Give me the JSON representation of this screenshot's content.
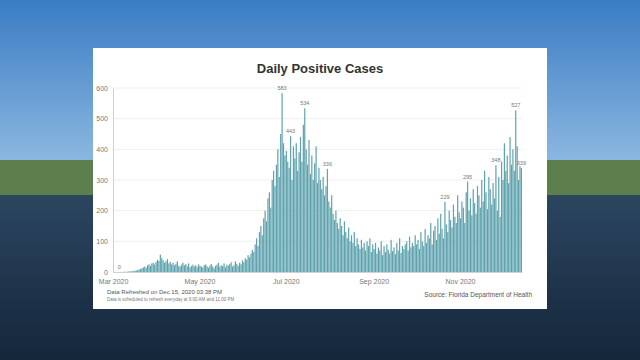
{
  "chart_data": {
    "type": "bar",
    "title": "Daily Positive Cases",
    "notes": [
      "Data Refreshed on Dec 15, 2020 03:38 PM",
      "Data is scheduled to refresh everyday at 9:00 AM and 11:00 PM"
    ],
    "source": "Source: Florida Department of Health",
    "color": "#5fa3ae",
    "grid": true,
    "data_labels": true,
    "ylim": [
      0,
      600
    ],
    "yticks": [
      0,
      100,
      200,
      300,
      400,
      500,
      600
    ],
    "categories": [
      "Mar 2020",
      null,
      null,
      null,
      null,
      null,
      null,
      null,
      null,
      null,
      null,
      null,
      null,
      null,
      null,
      null,
      null,
      null,
      null,
      null,
      null,
      null,
      null,
      null,
      null,
      null,
      null,
      null,
      null,
      null,
      null,
      null,
      null,
      null,
      null,
      null,
      null,
      null,
      null,
      null,
      null,
      null,
      null,
      null,
      null,
      null,
      null,
      null,
      null,
      null,
      null,
      null,
      null,
      null,
      null,
      null,
      null,
      null,
      null,
      null,
      null,
      "May 2020",
      null,
      null,
      null,
      null,
      null,
      null,
      null,
      null,
      null,
      null,
      null,
      null,
      null,
      null,
      null,
      null,
      null,
      null,
      null,
      null,
      null,
      null,
      null,
      null,
      null,
      null,
      null,
      null,
      null,
      null,
      null,
      null,
      null,
      null,
      null,
      null,
      null,
      null,
      null,
      null,
      null,
      null,
      null,
      null,
      null,
      null,
      null,
      null,
      null,
      null,
      null,
      null,
      null,
      null,
      null,
      null,
      null,
      null,
      null,
      null,
      "Jul 2020",
      null,
      null,
      null,
      null,
      null,
      null,
      null,
      null,
      null,
      null,
      null,
      null,
      null,
      null,
      null,
      null,
      null,
      null,
      null,
      null,
      null,
      null,
      null,
      null,
      null,
      null,
      null,
      null,
      null,
      null,
      null,
      null,
      null,
      null,
      null,
      null,
      null,
      null,
      null,
      null,
      null,
      null,
      null,
      null,
      null,
      null,
      null,
      null,
      null,
      null,
      null,
      null,
      null,
      null,
      null,
      null,
      null,
      null,
      null,
      null,
      null,
      "Sep 2020",
      null,
      null,
      null,
      null,
      null,
      null,
      null,
      null,
      null,
      null,
      null,
      null,
      null,
      null,
      null,
      null,
      null,
      null,
      null,
      null,
      null,
      null,
      null,
      null,
      null,
      null,
      null,
      null,
      null,
      null,
      null,
      null,
      null,
      null,
      null,
      null,
      null,
      null,
      null,
      null,
      null,
      null,
      null,
      null,
      null,
      null,
      null,
      null,
      null,
      null,
      null,
      null,
      null,
      null,
      null,
      null,
      null,
      null,
      null,
      null,
      "Nov 2020",
      null,
      null,
      null,
      null,
      null,
      null,
      null,
      null,
      null,
      null,
      null,
      null,
      null,
      null,
      null,
      null,
      null,
      null,
      null,
      null,
      null,
      null,
      null,
      null,
      null,
      null,
      null,
      null,
      null,
      null,
      null,
      null,
      null,
      null,
      null,
      null,
      null,
      null,
      null,
      null,
      null,
      null,
      null
    ],
    "values": [
      0,
      0,
      0,
      0,
      0,
      0,
      0,
      0,
      1,
      0,
      1,
      2,
      1,
      3,
      2,
      4,
      5,
      6,
      8,
      10,
      12,
      15,
      18,
      14,
      22,
      25,
      20,
      28,
      30,
      24,
      33,
      40,
      36,
      57,
      45,
      38,
      30,
      35,
      42,
      28,
      33,
      25,
      30,
      22,
      27,
      35,
      20,
      18,
      24,
      30,
      22,
      26,
      19,
      28,
      15,
      20,
      24,
      18,
      22,
      16,
      25,
      20,
      18,
      15,
      22,
      25,
      19,
      14,
      21,
      26,
      18,
      12,
      20,
      24,
      30,
      17,
      22,
      19,
      28,
      15,
      24,
      20,
      26,
      32,
      18,
      22,
      35,
      27,
      20,
      30,
      25,
      38,
      32,
      45,
      40,
      55,
      48,
      60,
      72,
      65,
      90,
      110,
      85,
      130,
      150,
      120,
      175,
      200,
      165,
      240,
      260,
      210,
      300,
      330,
      280,
      350,
      400,
      310,
      450,
      583,
      420,
      380,
      395,
      360,
      340,
      443,
      300,
      410,
      370,
      420,
      330,
      390,
      440,
      360,
      480,
      534,
      400,
      350,
      430,
      320,
      380,
      300,
      355,
      410,
      290,
      340,
      300,
      270,
      310,
      250,
      280,
      336,
      230,
      210,
      250,
      190,
      170,
      200,
      160,
      140,
      175,
      150,
      120,
      165,
      130,
      110,
      145,
      100,
      120,
      95,
      130,
      85,
      110,
      90,
      75,
      105,
      80,
      95,
      70,
      100,
      85,
      110,
      65,
      90,
      75,
      95,
      60,
      80,
      70,
      100,
      55,
      85,
      65,
      90,
      72,
      60,
      105,
      68,
      80,
      58,
      95,
      70,
      110,
      62,
      85,
      75,
      90,
      100,
      70,
      115,
      80,
      95,
      85,
      120,
      90,
      105,
      75,
      130,
      100,
      85,
      140,
      95,
      120,
      110,
      160,
      90,
      135,
      150,
      105,
      175,
      125,
      190,
      140,
      110,
      229,
      155,
      130,
      200,
      170,
      145,
      220,
      180,
      160,
      250,
      195,
      175,
      230,
      210,
      160,
      260,
      295,
      200,
      240,
      185,
      270,
      225,
      190,
      280,
      250,
      210,
      300,
      230,
      330,
      260,
      205,
      310,
      270,
      220,
      290,
      240,
      348,
      200,
      310,
      180,
      360,
      300,
      420,
      330,
      380,
      290,
      440,
      350,
      400,
      330,
      527,
      410,
      300,
      345,
      339
    ],
    "value_labels": [
      null,
      null,
      null,
      null,
      "0",
      null,
      null,
      null,
      null,
      null,
      null,
      null,
      null,
      null,
      null,
      null,
      null,
      null,
      null,
      null,
      null,
      null,
      null,
      null,
      null,
      null,
      null,
      null,
      null,
      null,
      null,
      null,
      null,
      null,
      null,
      null,
      null,
      null,
      null,
      null,
      null,
      null,
      null,
      null,
      null,
      null,
      null,
      null,
      null,
      null,
      null,
      null,
      null,
      null,
      null,
      null,
      null,
      null,
      null,
      null,
      null,
      null,
      null,
      null,
      null,
      null,
      null,
      null,
      null,
      null,
      null,
      null,
      null,
      null,
      null,
      null,
      null,
      null,
      null,
      null,
      null,
      null,
      null,
      null,
      null,
      null,
      null,
      null,
      null,
      null,
      null,
      null,
      null,
      null,
      null,
      null,
      null,
      null,
      null,
      null,
      null,
      null,
      null,
      null,
      null,
      null,
      null,
      null,
      null,
      null,
      null,
      null,
      null,
      null,
      null,
      null,
      null,
      null,
      null,
      "583",
      null,
      null,
      null,
      null,
      null,
      "443",
      null,
      null,
      null,
      null,
      null,
      null,
      null,
      null,
      null,
      "534",
      null,
      null,
      null,
      null,
      null,
      null,
      null,
      null,
      null,
      null,
      null,
      null,
      null,
      null,
      null,
      "336",
      null,
      null,
      null,
      null,
      null,
      null,
      null,
      null,
      null,
      null,
      null,
      null,
      null,
      null,
      null,
      null,
      null,
      null,
      null,
      null,
      null,
      null,
      null,
      null,
      null,
      null,
      null,
      null,
      null,
      null,
      null,
      null,
      null,
      null,
      null,
      null,
      null,
      null,
      null,
      null,
      null,
      null,
      null,
      null,
      null,
      null,
      null,
      null,
      null,
      null,
      null,
      null,
      null,
      null,
      null,
      null,
      null,
      null,
      null,
      null,
      null,
      null,
      null,
      null,
      null,
      null,
      null,
      null,
      null,
      null,
      null,
      null,
      null,
      null,
      null,
      null,
      null,
      null,
      null,
      null,
      null,
      null,
      "229",
      null,
      null,
      null,
      null,
      null,
      null,
      null,
      null,
      null,
      null,
      null,
      null,
      null,
      null,
      null,
      "295",
      null,
      null,
      null,
      null,
      null,
      null,
      null,
      null,
      null,
      null,
      null,
      null,
      null,
      null,
      null,
      null,
      null,
      null,
      null,
      "348",
      null,
      null,
      null,
      null,
      null,
      null,
      null,
      null,
      null,
      null,
      null,
      null,
      null,
      "527",
      null,
      null,
      null,
      "339"
    ]
  }
}
